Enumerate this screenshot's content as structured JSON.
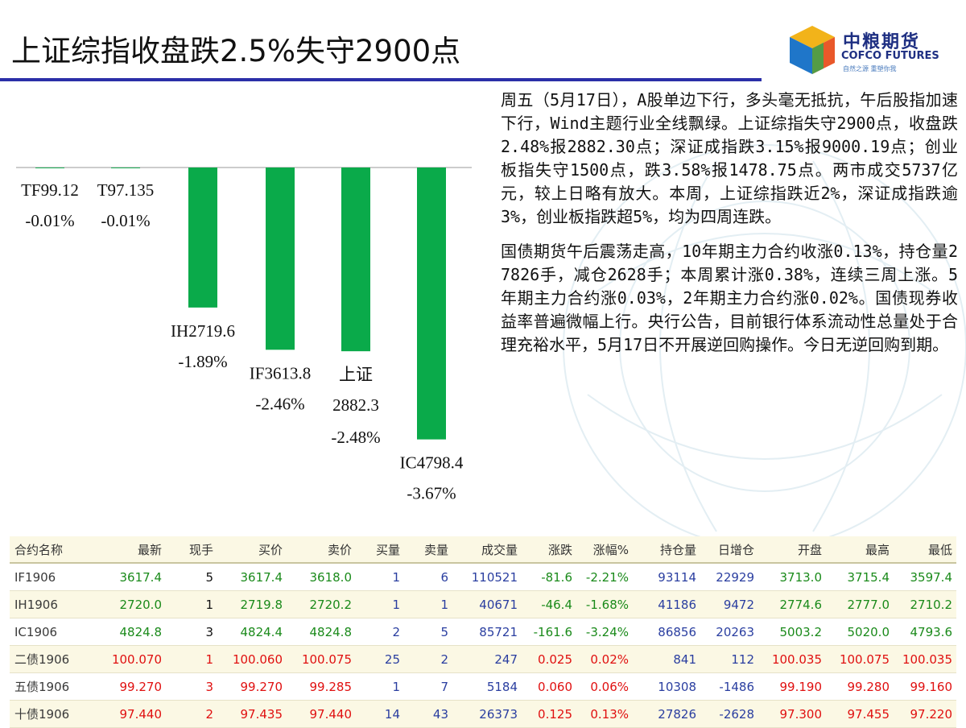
{
  "header": {
    "title": "上证综指收盘跌2.5%失守2900点",
    "accent_color": "#2b2fa8"
  },
  "logo": {
    "cn": "中粮期货",
    "en": "COFCO FUTURES",
    "slogan": "自然之源 重塑你我"
  },
  "chart_data": {
    "type": "bar",
    "categories": [
      "TF",
      "T",
      "IH",
      "IF",
      "上证",
      "IC"
    ],
    "series": [
      {
        "values": [
          -0.01,
          -0.01,
          -1.89,
          -2.46,
          -2.48,
          -3.67
        ],
        "color": "#0aaa4a"
      }
    ],
    "labels": [
      {
        "name": "TF99.12",
        "change": "-0.01%"
      },
      {
        "name": "T97.135",
        "change": "-0.01%"
      },
      {
        "name": "IH2719.6",
        "change": "-1.89%"
      },
      {
        "name": "IF3613.8",
        "change": "-2.46%"
      },
      {
        "name": "上证",
        "value": "2882.3",
        "change": "-2.48%"
      },
      {
        "name": "IC4798.4",
        "change": "-3.67%"
      }
    ],
    "ylim": [
      -3.67,
      0
    ],
    "grid": false,
    "legend": "none"
  },
  "paragraphs": [
    "周五（5月17日），A股单边下行，多头毫无抵抗，午后股指加速下行，Wind主题行业全线飘绿。上证综指失守2900点，收盘跌2.48%报2882.30点；深证成指跌3.15%报9000.19点；创业板指失守1500点，跌3.58%报1478.75点。两市成交5737亿元，较上日略有放大。本周，上证综指跌近2%，深证成指跌逾3%，创业板指跌超5%，均为四周连跌。",
    "国债期货午后震荡走高，10年期主力合约收涨0.13%，持仓量27826手，减仓2628手；本周累计涨0.38%，连续三周上涨。5年期主力合约涨0.03%，2年期主力合约涨0.02%。国债现券收益率普遍微幅上行。央行公告，目前银行体系流动性总量处于合理充裕水平，5月17日不开展逆回购操作。今日无逆回购到期。"
  ],
  "quote_table": {
    "columns": [
      "合约名称",
      "最新",
      "现手",
      "买价",
      "卖价",
      "买量",
      "卖量",
      "成交量",
      "涨跌",
      "涨幅%",
      "持仓量",
      "日增仓",
      "开盘",
      "最高",
      "最低"
    ],
    "rows": [
      [
        "IF1906",
        "3617.4",
        "5",
        "3617.4",
        "3618.0",
        "1",
        "6",
        "110521",
        "-81.6",
        "-2.21%",
        "93114",
        "22929",
        "3713.0",
        "3715.4",
        "3597.4"
      ],
      [
        "IH1906",
        "2720.0",
        "1",
        "2719.8",
        "2720.2",
        "1",
        "1",
        "40671",
        "-46.4",
        "-1.68%",
        "41186",
        "9472",
        "2774.6",
        "2777.0",
        "2710.2"
      ],
      [
        "IC1906",
        "4824.8",
        "3",
        "4824.4",
        "4824.8",
        "2",
        "5",
        "85721",
        "-161.6",
        "-3.24%",
        "86856",
        "20263",
        "5003.2",
        "5020.0",
        "4793.6"
      ],
      [
        "二债1906",
        "100.070",
        "1",
        "100.060",
        "100.075",
        "25",
        "2",
        "247",
        "0.025",
        "0.02%",
        "841",
        "112",
        "100.035",
        "100.075",
        "100.035"
      ],
      [
        "五债1906",
        "99.270",
        "3",
        "99.270",
        "99.285",
        "1",
        "7",
        "5184",
        "0.060",
        "0.06%",
        "10308",
        "-1486",
        "99.190",
        "99.280",
        "99.160"
      ],
      [
        "十债1906",
        "97.440",
        "2",
        "97.435",
        "97.440",
        "14",
        "43",
        "26373",
        "0.125",
        "0.13%",
        "27826",
        "-2628",
        "97.300",
        "97.455",
        "97.220"
      ]
    ],
    "colors": {
      "up": "#e01010",
      "down": "#1a8a1a",
      "volume": "#2a3ea0",
      "neutral": "#111111"
    }
  }
}
